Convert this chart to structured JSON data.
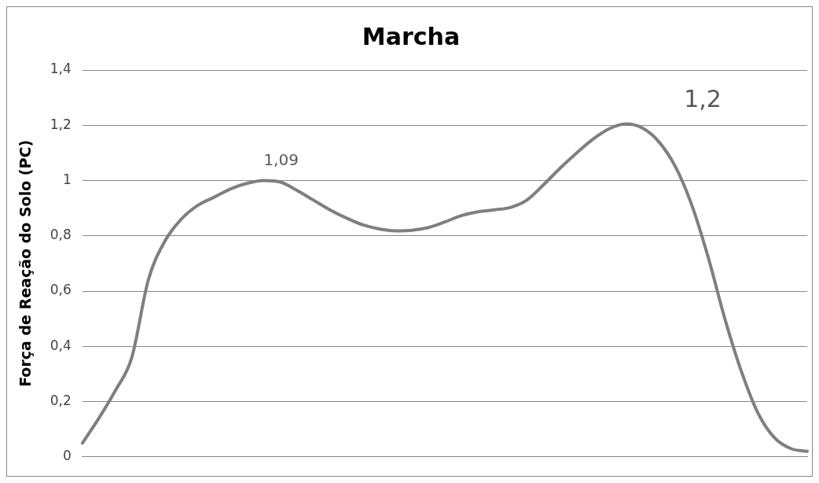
{
  "chart_data": {
    "type": "line",
    "title": "Marcha",
    "ylabel": "Força de Reação do Solo (PC)",
    "categories": [
      null,
      null,
      null,
      null,
      null,
      null,
      null,
      null,
      null,
      null,
      null,
      null,
      null,
      null,
      null,
      null,
      null,
      null,
      null,
      null,
      null,
      null,
      null,
      null,
      null,
      null,
      null,
      null,
      null,
      null,
      null,
      null,
      null,
      null,
      null,
      null,
      null,
      null,
      null,
      null,
      null,
      null,
      null,
      null,
      null
    ],
    "series": [
      {
        "color": "#7f7f7f",
        "values": [
          0.05,
          0.14,
          0.24,
          0.36,
          0.64,
          0.78,
          0.86,
          0.91,
          0.94,
          0.97,
          0.99,
          1.0,
          0.995,
          0.965,
          0.93,
          0.895,
          0.865,
          0.84,
          0.825,
          0.818,
          0.82,
          0.83,
          0.85,
          0.873,
          0.887,
          0.894,
          0.903,
          0.93,
          0.985,
          1.045,
          1.1,
          1.15,
          1.188,
          1.205,
          1.19,
          1.14,
          1.05,
          0.91,
          0.72,
          0.5,
          0.31,
          0.16,
          0.07,
          0.03,
          0.02
        ]
      }
    ],
    "annotations": [
      "1,09",
      "1,2"
    ],
    "ylim": [
      0,
      1.4
    ],
    "yticks": [
      {
        "value": 0,
        "label": "0"
      },
      {
        "value": 0.2,
        "label": "0,2"
      },
      {
        "value": 0.4,
        "label": "0,4"
      },
      {
        "value": 0.6,
        "label": "0,6"
      },
      {
        "value": 0.8,
        "label": "0,8"
      },
      {
        "value": 1,
        "label": "1"
      },
      {
        "value": 1.2,
        "label": "1,2"
      },
      {
        "value": 1.4,
        "label": "1,4"
      }
    ],
    "grid": "y",
    "legend": false,
    "marker": "none",
    "line_style": "solid",
    "tick_labels": "y"
  }
}
